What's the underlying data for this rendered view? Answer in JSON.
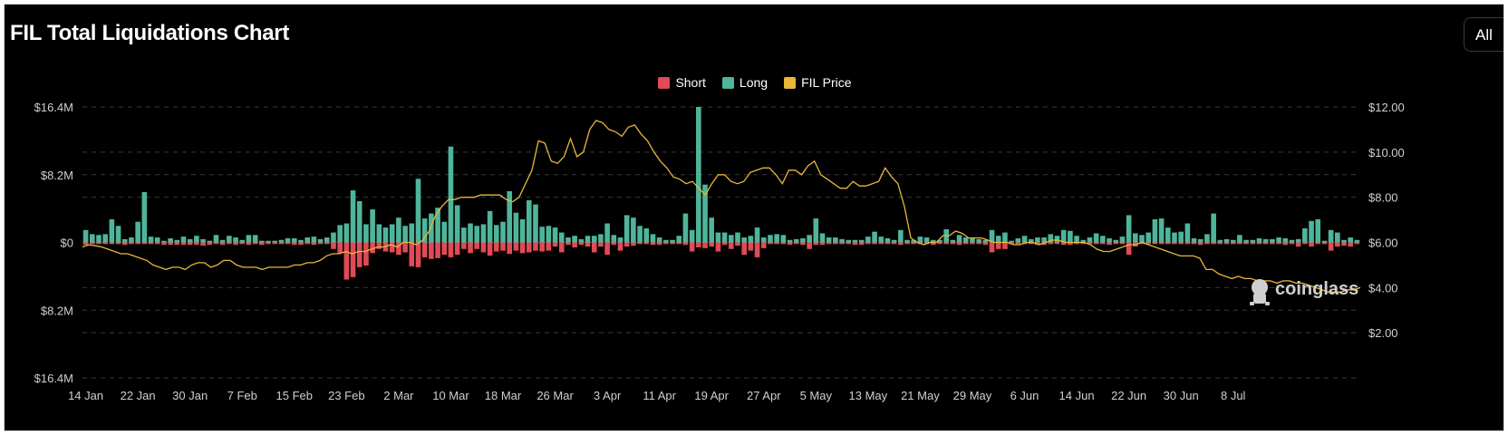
{
  "title": "FIL Total Liquidations Chart",
  "range_selector": {
    "value": "All",
    "icon": "updown-chevron-icon"
  },
  "watermark": "coinglass",
  "colors": {
    "short": "#e04b55",
    "long": "#4eb59a",
    "price": "#e8b83a",
    "grid": "#3a3a3a",
    "text": "#cfcfcf"
  },
  "chart_data": {
    "type": "bar",
    "title": "FIL Total Liquidations Chart",
    "legend": [
      "Short",
      "Long",
      "FIL Price"
    ],
    "legend_position": "top-center",
    "grid": true,
    "y_left": {
      "ticks": [
        "$16.4M",
        "$8.2M",
        "$0",
        "$8.2M",
        "$16.4M"
      ],
      "range_millions": [
        -16.4,
        16.4
      ]
    },
    "y_right": {
      "ticks": [
        "$12.00",
        "$10.00",
        "$8.00",
        "$6.00",
        "$4.00",
        "$2.00"
      ],
      "range": [
        0,
        12
      ]
    },
    "x_ticks": [
      "14 Jan",
      "22 Jan",
      "30 Jan",
      "7 Feb",
      "15 Feb",
      "23 Feb",
      "2 Mar",
      "10 Mar",
      "18 Mar",
      "26 Mar",
      "3 Apr",
      "11 Apr",
      "19 Apr",
      "27 Apr",
      "5 May",
      "13 May",
      "21 May",
      "29 May",
      "6 Jun",
      "14 Jun",
      "22 Jun",
      "30 Jun",
      "8 Jul"
    ],
    "x_start": "14 Jan",
    "x_interval_days": 1,
    "series": [
      {
        "name": "Long",
        "unit": "USD millions",
        "values": [
          1.5,
          1.0,
          0.9,
          1.0,
          2.8,
          2.0,
          0.4,
          0.6,
          2.5,
          6.1,
          0.7,
          0.6,
          0.2,
          0.5,
          0.3,
          0.7,
          0.4,
          0.8,
          0.4,
          0.2,
          0.9,
          0.3,
          0.8,
          0.6,
          0.3,
          0.9,
          0.9,
          0.2,
          0.2,
          0.2,
          0.3,
          0.5,
          0.5,
          0.3,
          0.6,
          0.7,
          0.4,
          0.6,
          1.2,
          2.1,
          2.3,
          6.3,
          5.0,
          2.2,
          4.0,
          2.2,
          1.8,
          2.2,
          3.0,
          2.0,
          2.3,
          7.7,
          2.9,
          3.5,
          4.2,
          2.5,
          11.6,
          4.5,
          1.8,
          2.3,
          2.0,
          2.2,
          3.8,
          2.1,
          2.5,
          6.2,
          3.6,
          2.8,
          5.1,
          4.6,
          1.9,
          2.0,
          1.8,
          1.2,
          0.6,
          0.8,
          0.4,
          0.8,
          0.8,
          1.0,
          2.3,
          0.9,
          0.6,
          3.3,
          3.0,
          2.0,
          1.7,
          1.0,
          0.6,
          0.3,
          0.3,
          0.8,
          3.5,
          1.5,
          16.4,
          7.0,
          3.0,
          1.2,
          1.2,
          0.9,
          1.2,
          0.6,
          0.8,
          1.8,
          0.6,
          0.9,
          1.0,
          0.9,
          0.3,
          0.4,
          0.5,
          0.9,
          2.9,
          1.1,
          0.6,
          0.6,
          0.4,
          0.3,
          0.3,
          0.3,
          0.7,
          1.3,
          0.7,
          0.5,
          0.3,
          1.5,
          0.3,
          0.3,
          0.7,
          0.6,
          0.3,
          0.3,
          1.6,
          0.3,
          0.9,
          0.6,
          0.6,
          0.4,
          0.3,
          1.5,
          0.8,
          1.2,
          0.2,
          0.5,
          0.8,
          0.4,
          0.6,
          0.6,
          1.0,
          0.8,
          1.5,
          1.4,
          0.8,
          0.3,
          0.6,
          1.1,
          0.8,
          0.5,
          0.3,
          0.7,
          3.3,
          1.1,
          0.9,
          1.2,
          2.8,
          2.9,
          1.8,
          1.2,
          1.3,
          2.3,
          0.5,
          0.4,
          1.0,
          3.5,
          0.3,
          0.4,
          0.3,
          0.9,
          0.3,
          0.3,
          0.5,
          0.4,
          0.4,
          0.6,
          0.5,
          0.3,
          0.4,
          1.7,
          2.6,
          2.8,
          0.2,
          1.5,
          1.2,
          0.3,
          0.6,
          0.3
        ]
      },
      {
        "name": "Short",
        "unit": "USD millions",
        "values": [
          0.3,
          0.2,
          0.2,
          0.2,
          0.2,
          0.2,
          0.3,
          0.2,
          0.2,
          0.2,
          0.2,
          0.2,
          0.3,
          0.3,
          0.3,
          0.3,
          0.3,
          0.3,
          0.4,
          0.3,
          0.2,
          0.3,
          0.2,
          0.3,
          0.2,
          0.3,
          0.2,
          0.3,
          0.2,
          0.2,
          0.2,
          0.2,
          0.3,
          0.3,
          0.2,
          0.3,
          0.2,
          0.2,
          0.8,
          1.3,
          4.5,
          4.2,
          3.0,
          2.8,
          1.3,
          0.8,
          1.1,
          1.2,
          1.5,
          1.2,
          2.9,
          3.0,
          1.8,
          2.0,
          1.9,
          1.5,
          1.8,
          1.5,
          0.8,
          1.3,
          0.8,
          1.2,
          1.6,
          1.1,
          1.0,
          1.4,
          1.0,
          1.3,
          1.2,
          1.0,
          1.1,
          1.0,
          0.5,
          1.2,
          0.3,
          0.6,
          0.3,
          0.5,
          1.2,
          0.5,
          1.5,
          0.3,
          1.0,
          0.5,
          0.4,
          0.2,
          0.2,
          0.3,
          0.3,
          0.2,
          0.2,
          0.2,
          0.3,
          1.1,
          0.6,
          0.7,
          0.5,
          1.1,
          0.3,
          0.8,
          0.4,
          1.5,
          1.0,
          1.8,
          0.7,
          0.2,
          0.2,
          0.2,
          0.3,
          0.2,
          0.3,
          0.8,
          0.3,
          0.3,
          0.2,
          0.2,
          0.2,
          0.2,
          0.3,
          0.3,
          0.2,
          0.2,
          0.2,
          0.2,
          0.2,
          0.3,
          0.2,
          0.2,
          0.2,
          0.2,
          0.3,
          0.2,
          0.2,
          0.2,
          0.3,
          0.2,
          0.2,
          0.2,
          0.3,
          1.2,
          0.8,
          0.8,
          0.2,
          0.2,
          0.2,
          0.2,
          0.3,
          0.3,
          0.2,
          0.2,
          0.3,
          0.3,
          0.2,
          0.2,
          0.2,
          0.2,
          0.2,
          0.3,
          0.2,
          0.2,
          1.5,
          0.5,
          0.2,
          0.2,
          0.2,
          0.2,
          0.2,
          0.2,
          0.2,
          0.2,
          0.2,
          0.3,
          0.2,
          0.2,
          0.2,
          0.2,
          0.2,
          0.2,
          0.2,
          0.2,
          0.2,
          0.2,
          0.2,
          0.2,
          0.3,
          0.2,
          0.5,
          0.2,
          0.5,
          0.2,
          0.2,
          1.0,
          0.5,
          0.4,
          0.5,
          0.2
        ]
      },
      {
        "name": "FIL Price",
        "unit": "USD",
        "values": [
          5.8,
          5.9,
          5.85,
          5.8,
          5.7,
          5.6,
          5.5,
          5.5,
          5.4,
          5.3,
          5.2,
          5.0,
          4.9,
          4.8,
          4.9,
          4.9,
          4.8,
          5.0,
          5.1,
          5.1,
          4.9,
          5.0,
          5.2,
          5.2,
          5.0,
          4.9,
          4.9,
          4.9,
          4.8,
          4.9,
          4.9,
          4.9,
          4.9,
          5.0,
          5.0,
          5.1,
          5.1,
          5.2,
          5.4,
          5.5,
          5.5,
          5.6,
          5.5,
          5.6,
          5.6,
          5.7,
          5.8,
          5.8,
          5.9,
          5.8,
          6.0,
          6.0,
          5.9,
          6.1,
          6.5,
          7.2,
          7.6,
          7.9,
          7.9,
          8.0,
          8.0,
          8.0,
          8.1,
          8.1,
          8.1,
          8.1,
          7.9,
          7.8,
          8.0,
          8.6,
          9.2,
          10.5,
          10.4,
          9.6,
          9.5,
          9.8,
          10.6,
          9.8,
          10.0,
          11.0,
          11.4,
          11.3,
          11.0,
          10.9,
          10.7,
          11.1,
          11.2,
          10.8,
          10.5,
          10.0,
          9.6,
          9.3,
          8.9,
          8.8,
          8.6,
          8.7,
          8.4,
          8.1,
          8.6,
          9.0,
          9.0,
          8.7,
          8.6,
          8.7,
          9.1,
          9.2,
          9.3,
          9.3,
          9.0,
          8.6,
          9.2,
          9.2,
          9.0,
          9.4,
          9.6,
          9.0,
          8.8,
          8.6,
          8.4,
          8.4,
          8.7,
          8.5,
          8.5,
          8.6,
          8.7,
          9.3,
          8.9,
          8.6,
          7.6,
          6.2,
          6.0,
          5.9,
          6.0,
          6.0,
          6.3,
          6.3,
          6.5,
          6.4,
          6.2,
          6.2,
          6.2,
          6.1,
          6.0,
          6.0,
          6.0,
          5.9,
          5.9,
          6.0,
          6.0,
          5.9,
          6.0,
          6.1,
          6.1,
          6.0,
          6.0,
          6.0,
          6.0,
          5.9,
          5.7,
          5.6,
          5.6,
          5.7,
          5.8,
          5.9,
          5.9,
          6.0,
          5.9,
          5.8,
          5.7,
          5.6,
          5.5,
          5.4,
          5.4,
          5.4,
          5.3,
          4.8,
          4.8,
          4.6,
          4.5,
          4.4,
          4.5,
          4.4,
          4.4,
          4.3,
          4.3,
          4.3,
          4.2,
          4.3,
          4.3,
          4.2,
          4.2,
          4.1,
          4.0,
          3.9,
          3.8,
          3.8,
          3.8,
          3.9,
          3.9,
          4.0
        ]
      }
    ]
  }
}
